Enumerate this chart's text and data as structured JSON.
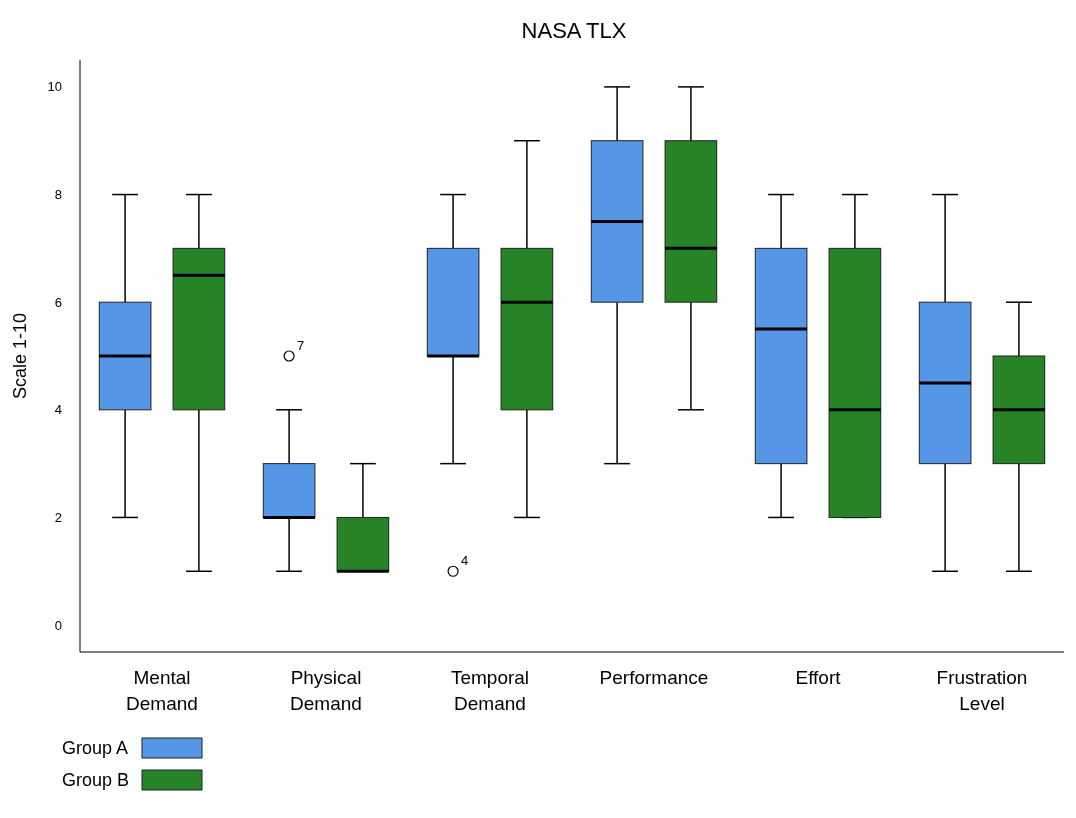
{
  "chart_data": {
    "type": "box",
    "title": "NASA TLX",
    "ylabel": "Scale 1-10",
    "categories": [
      "Mental Demand",
      "Physical Demand",
      "Temporal Demand",
      "Performance",
      "Effort",
      "Frustration Level"
    ],
    "series": [
      {
        "name": "Group A",
        "color": "#5596e6",
        "boxes": [
          {
            "low": 2,
            "q1": 4,
            "median": 5,
            "q3": 6,
            "high": 8
          },
          {
            "low": 1,
            "q1": 2,
            "median": 2,
            "q3": 3,
            "high": 4,
            "outliers": [
              5
            ]
          },
          {
            "low": 3,
            "q1": 5,
            "median": 5,
            "q3": 7,
            "high": 8,
            "outliers": [
              1
            ]
          },
          {
            "low": 3,
            "q1": 6,
            "median": 7.5,
            "q3": 9,
            "high": 10
          },
          {
            "low": 2,
            "q1": 3,
            "median": 5.5,
            "q3": 7,
            "high": 8
          },
          {
            "low": 1,
            "q1": 3,
            "median": 4.5,
            "q3": 6,
            "high": 8
          }
        ]
      },
      {
        "name": "Group B",
        "color": "#268426",
        "boxes": [
          {
            "low": 1,
            "q1": 4,
            "median": 6.5,
            "q3": 7,
            "high": 8
          },
          {
            "low": 1,
            "q1": 1,
            "median": 1,
            "q3": 2,
            "high": 3
          },
          {
            "low": 2,
            "q1": 4,
            "median": 6,
            "q3": 7,
            "high": 9
          },
          {
            "low": 4,
            "q1": 6,
            "median": 7,
            "q3": 9,
            "high": 10
          },
          {
            "low": 2,
            "q1": 2,
            "median": 4,
            "q3": 7,
            "high": 8
          },
          {
            "low": 1,
            "q1": 3,
            "median": 4,
            "q3": 5,
            "high": 6
          }
        ]
      }
    ],
    "annotations": [
      "7",
      "4"
    ],
    "ylim": [
      -0.5,
      10.5
    ],
    "yticks": [
      0,
      2,
      4,
      6,
      8,
      10
    ],
    "grid": false,
    "legend": "bottom left"
  }
}
